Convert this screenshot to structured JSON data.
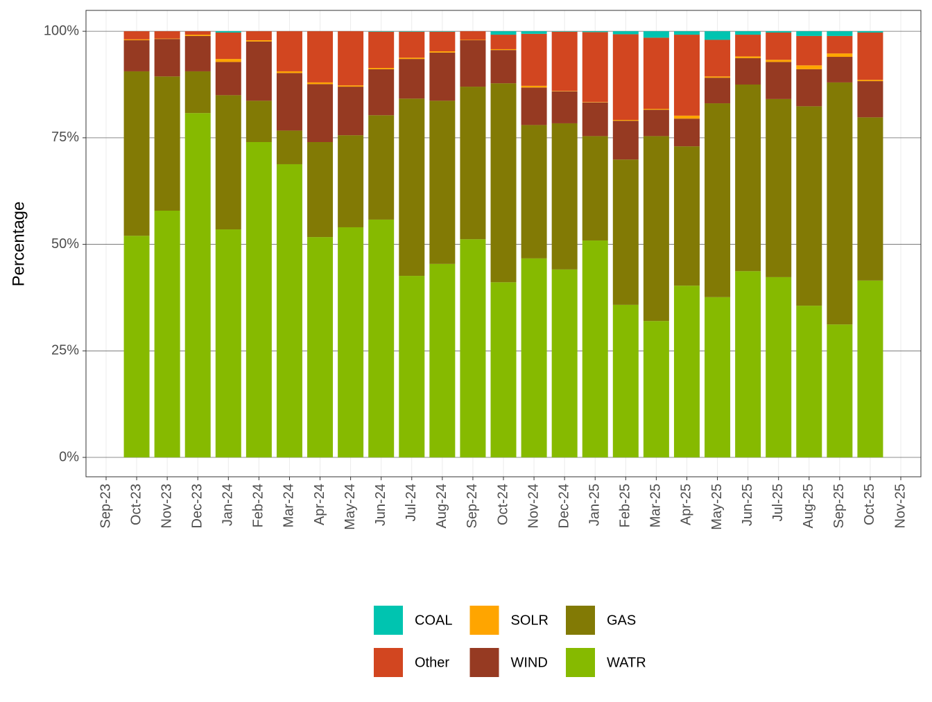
{
  "chart_data": {
    "type": "stacked_bar",
    "y_label": "Percentage",
    "categories": [
      "Sep-23",
      "Oct-23",
      "Nov-23",
      "Dec-23",
      "Jan-24",
      "Feb-24",
      "Mar-24",
      "Apr-24",
      "May-24",
      "Jun-24",
      "Jul-24",
      "Aug-24",
      "Sep-24",
      "Oct-24",
      "Nov-24",
      "Dec-24",
      "Jan-25",
      "Feb-25",
      "Mar-25",
      "Apr-25",
      "May-25",
      "Jun-25",
      "Jul-25",
      "Aug-25",
      "Sep-25",
      "Oct-25",
      "Nov-25"
    ],
    "series": [
      {
        "name": "COAL",
        "color": "#00c4b0",
        "values": [
          null,
          0,
          0,
          0,
          0.3,
          0,
          0,
          0,
          0,
          0.1,
          0.1,
          0.1,
          0,
          0.8,
          0.6,
          0.1,
          0.2,
          0.7,
          1.5,
          0.8,
          2.0,
          0.8,
          0.3,
          1.1,
          1.1,
          0.3,
          null
        ]
      },
      {
        "name": "Other",
        "color": "#d24620",
        "values": [
          null,
          1.9,
          1.7,
          0.8,
          6.2,
          2.1,
          9.4,
          12.0,
          12.7,
          8.5,
          6.1,
          4.6,
          2.0,
          3.4,
          12.2,
          13.9,
          16.4,
          20.1,
          16.7,
          19.0,
          8.6,
          5.1,
          6.4,
          6.9,
          4.1,
          11.1,
          null
        ]
      },
      {
        "name": "SOLR",
        "color": "#ffa500",
        "values": [
          null,
          0.2,
          0.1,
          0.3,
          0.7,
          0.3,
          0.4,
          0.4,
          0.3,
          0.3,
          0.3,
          0.3,
          0.1,
          0.2,
          0.4,
          0.1,
          0.1,
          0.2,
          0.2,
          0.7,
          0.3,
          0.4,
          0.5,
          0.9,
          0.8,
          0.3,
          null
        ]
      },
      {
        "name": "WIND",
        "color": "#963a22",
        "values": [
          null,
          7.3,
          8.8,
          8.3,
          7.8,
          13.9,
          13.5,
          13.6,
          11.4,
          10.8,
          9.3,
          11.3,
          10.9,
          7.8,
          8.8,
          7.5,
          7.9,
          9.1,
          6.2,
          6.5,
          6.0,
          6.2,
          8.7,
          8.7,
          6.0,
          8.5,
          null
        ]
      },
      {
        "name": "GAS",
        "color": "#827a05",
        "values": [
          null,
          38.6,
          31.5,
          9.8,
          31.5,
          9.7,
          7.9,
          22.3,
          21.6,
          24.5,
          41.6,
          38.3,
          35.8,
          46.7,
          31.3,
          34.3,
          24.5,
          34.1,
          43.4,
          32.7,
          45.5,
          43.8,
          41.8,
          46.8,
          56.8,
          38.3,
          null
        ]
      },
      {
        "name": "WATR",
        "color": "#86ba00",
        "values": [
          null,
          52.0,
          57.9,
          80.8,
          53.5,
          74.0,
          68.8,
          51.7,
          54.0,
          55.8,
          42.6,
          45.4,
          51.2,
          41.1,
          46.7,
          44.1,
          50.9,
          35.8,
          32.0,
          40.3,
          37.6,
          43.7,
          42.3,
          35.6,
          31.2,
          41.5,
          null
        ]
      }
    ],
    "ylim": [
      -4.55,
      104.9
    ],
    "yticks": [
      {
        "value": 0,
        "label": "0%"
      },
      {
        "value": 25,
        "label": "25%"
      },
      {
        "value": 50,
        "label": "50%"
      },
      {
        "value": 75,
        "label": "75%"
      },
      {
        "value": 100,
        "label": "100%"
      }
    ],
    "grid": true,
    "legend_position": "bottom"
  }
}
